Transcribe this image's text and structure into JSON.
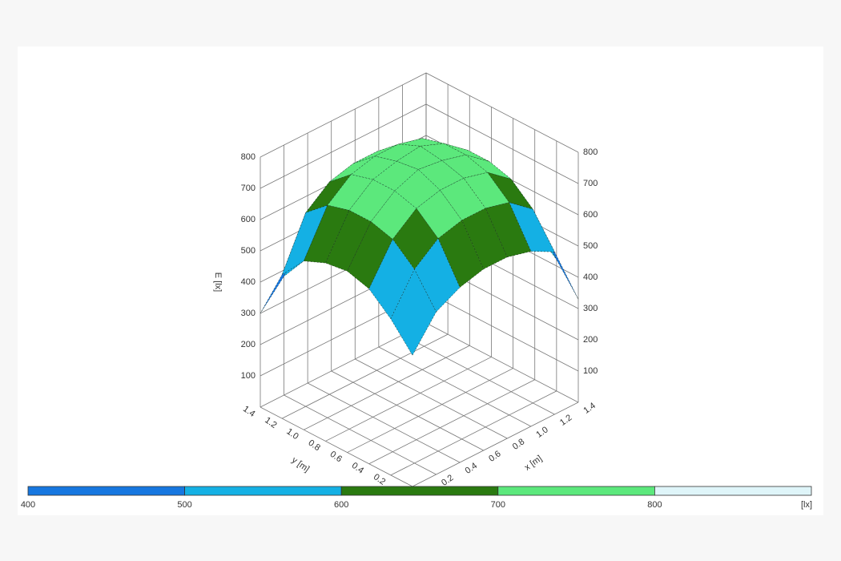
{
  "chart_data": {
    "type": "surface",
    "xlabel": "x [m]",
    "ylabel": "y [m]",
    "zlabel": "E [lx]",
    "x": [
      0,
      0.2,
      0.4,
      0.6,
      0.8,
      1.0,
      1.2,
      1.4
    ],
    "y": [
      0,
      0.2,
      0.4,
      0.6,
      0.8,
      1.0,
      1.2,
      1.4
    ],
    "z": [
      [
        420,
        520,
        560,
        580,
        580,
        560,
        520,
        330
      ],
      [
        500,
        620,
        680,
        700,
        700,
        680,
        620,
        420
      ],
      [
        560,
        680,
        740,
        760,
        760,
        740,
        680,
        480
      ],
      [
        580,
        700,
        760,
        790,
        780,
        760,
        700,
        520
      ],
      [
        570,
        700,
        760,
        780,
        790,
        760,
        700,
        520
      ],
      [
        540,
        680,
        740,
        760,
        760,
        740,
        680,
        500
      ],
      [
        460,
        620,
        680,
        700,
        700,
        680,
        620,
        440
      ],
      [
        300,
        380,
        400,
        420,
        440,
        440,
        420,
        330
      ]
    ],
    "xlim": [
      0,
      1.4
    ],
    "ylim": [
      0,
      1.4
    ],
    "zlim": [
      0,
      800
    ],
    "xticks": [
      0.2,
      0.4,
      0.6,
      0.8,
      {
        "value": 1,
        "label": "1.0"
      },
      1.2,
      1.4
    ],
    "yticks": [
      0.2,
      0.4,
      0.6,
      0.8,
      {
        "value": 1,
        "label": "1.0"
      },
      1.2,
      1.4
    ],
    "zticks": [
      100,
      200,
      300,
      400,
      500,
      600,
      700,
      800
    ],
    "below_color": "#b4b4b4",
    "colorbar": {
      "ticks": [
        400,
        500,
        600,
        700,
        800
      ],
      "unit": "[lx]",
      "colors": [
        "#1677e0",
        "#14b0e4",
        "#2a7a10",
        "#5ce87c",
        "#dff5f9"
      ]
    }
  }
}
